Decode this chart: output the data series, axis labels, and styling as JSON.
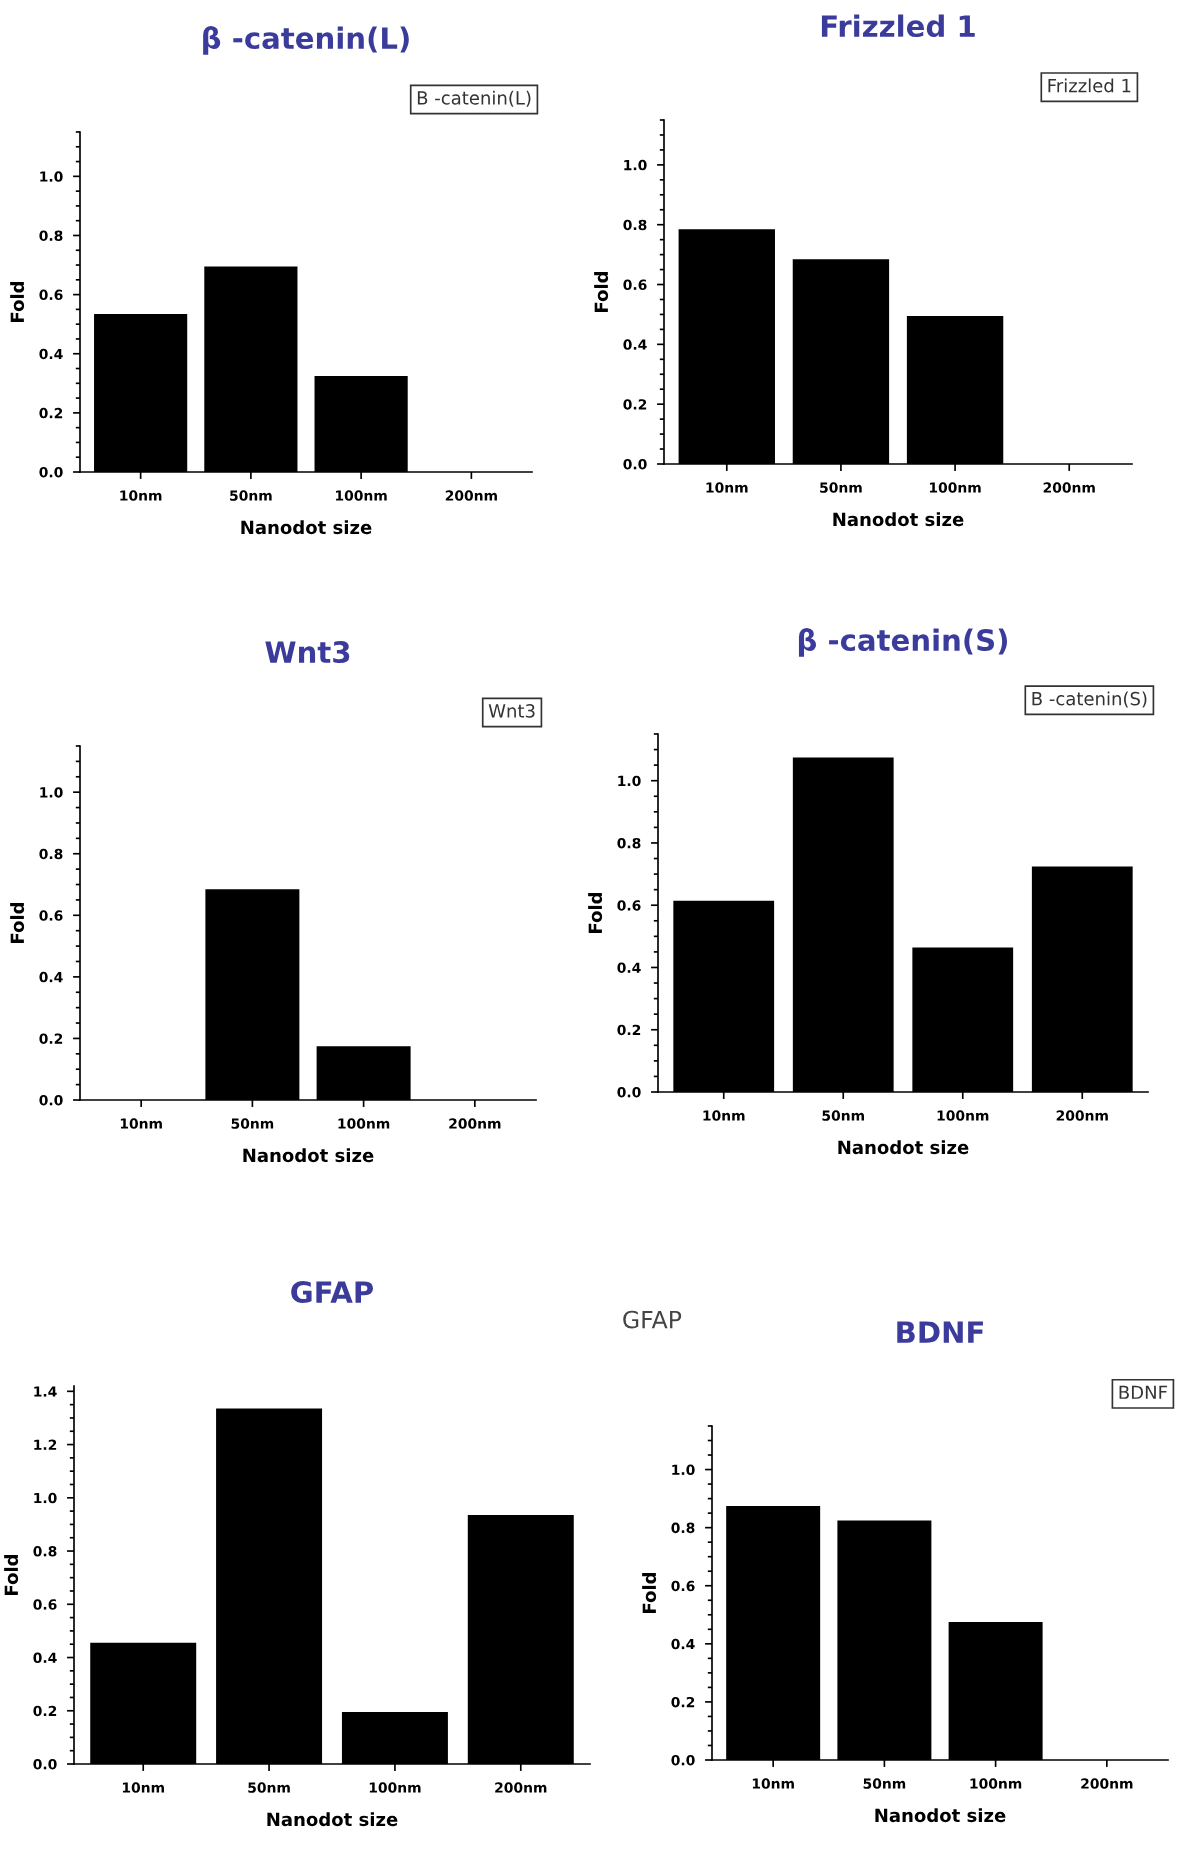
{
  "chart_data": [
    {
      "type": "bar",
      "title": "β -catenin(L)",
      "xlabel": "Nanodot size",
      "ylabel": "Fold",
      "categories": [
        "10nm",
        "50nm",
        "100nm",
        "200nm"
      ],
      "values": [
        0.53,
        0.69,
        0.32,
        null
      ],
      "color": "#000000",
      "ylim": [
        0,
        1.15
      ],
      "yticks": [
        {
          "value": 0,
          "label": "0.0"
        },
        {
          "value": 0.2,
          "label": "0.2"
        },
        {
          "value": 0.4,
          "label": "0.4"
        },
        {
          "value": 0.6,
          "label": "0.6"
        },
        {
          "value": 0.8,
          "label": "0.8"
        },
        {
          "value": 1.0,
          "label": "1.0"
        }
      ],
      "annotations": [
        "B -catenin(L)"
      ]
    },
    {
      "type": "bar",
      "title": "Frizzled 1",
      "xlabel": "Nanodot size",
      "ylabel": "Fold",
      "categories": [
        "10nm",
        "50nm",
        "100nm",
        "200nm"
      ],
      "values": [
        0.78,
        0.68,
        0.49,
        null
      ],
      "color": "#000000",
      "ylim": [
        0,
        1.15
      ],
      "yticks": [
        {
          "value": 0,
          "label": "0.0"
        },
        {
          "value": 0.2,
          "label": "0.2"
        },
        {
          "value": 0.4,
          "label": "0.4"
        },
        {
          "value": 0.6,
          "label": "0.6"
        },
        {
          "value": 0.8,
          "label": "0.8"
        },
        {
          "value": 1.0,
          "label": "1.0"
        }
      ],
      "annotations": [
        "Frizzled 1"
      ]
    },
    {
      "type": "bar",
      "title": "Wnt3",
      "xlabel": "Nanodot size",
      "ylabel": "Fold",
      "categories": [
        "10nm",
        "50nm",
        "100nm",
        "200nm"
      ],
      "values": [
        null,
        0.68,
        0.17,
        null
      ],
      "color": "#000000",
      "ylim": [
        0,
        1.15
      ],
      "yticks": [
        {
          "value": 0,
          "label": "0.0"
        },
        {
          "value": 0.2,
          "label": "0.2"
        },
        {
          "value": 0.4,
          "label": "0.4"
        },
        {
          "value": 0.6,
          "label": "0.6"
        },
        {
          "value": 0.8,
          "label": "0.8"
        },
        {
          "value": 1.0,
          "label": "1.0"
        }
      ],
      "annotations": [
        "Wnt3"
      ]
    },
    {
      "type": "bar",
      "title": "β -catenin(S)",
      "xlabel": "Nanodot size",
      "ylabel": "Fold",
      "categories": [
        "10nm",
        "50nm",
        "100nm",
        "200nm"
      ],
      "values": [
        0.61,
        1.07,
        0.46,
        0.72
      ],
      "color": "#000000",
      "ylim": [
        0,
        1.15
      ],
      "yticks": [
        {
          "value": 0,
          "label": "0.0"
        },
        {
          "value": 0.2,
          "label": "0.2"
        },
        {
          "value": 0.4,
          "label": "0.4"
        },
        {
          "value": 0.6,
          "label": "0.6"
        },
        {
          "value": 0.8,
          "label": "0.8"
        },
        {
          "value": 1.0,
          "label": "1.0"
        }
      ],
      "annotations": [
        "B -catenin(S)"
      ]
    },
    {
      "type": "bar",
      "title": "GFAP",
      "xlabel": "Nanodot size",
      "ylabel": "Fold",
      "categories": [
        "10nm",
        "50nm",
        "100nm",
        "200nm"
      ],
      "values": [
        0.45,
        1.33,
        0.19,
        0.93
      ],
      "color": "#000000",
      "ylim": [
        0,
        1.42
      ],
      "yticks": [
        {
          "value": 0,
          "label": "0.0"
        },
        {
          "value": 0.2,
          "label": "0.2"
        },
        {
          "value": 0.4,
          "label": "0.4"
        },
        {
          "value": 0.6,
          "label": "0.6"
        },
        {
          "value": 0.8,
          "label": "0.8"
        },
        {
          "value": 1.0,
          "label": "1.0"
        },
        {
          "value": 1.2,
          "label": "1.2"
        },
        {
          "value": 1.4,
          "label": "1.4"
        }
      ],
      "annotations": [
        "GFAP"
      ]
    },
    {
      "type": "bar",
      "title": "BDNF",
      "xlabel": "Nanodot size",
      "ylabel": "Fold",
      "categories": [
        "10nm",
        "50nm",
        "100nm",
        "200nm"
      ],
      "values": [
        0.87,
        0.82,
        0.47,
        null
      ],
      "color": "#000000",
      "ylim": [
        0,
        1.15
      ],
      "yticks": [
        {
          "value": 0,
          "label": "0.0"
        },
        {
          "value": 0.2,
          "label": "0.2"
        },
        {
          "value": 0.4,
          "label": "0.4"
        },
        {
          "value": 0.6,
          "label": "0.6"
        },
        {
          "value": 0.8,
          "label": "0.8"
        },
        {
          "value": 1.0,
          "label": "1.0"
        }
      ],
      "annotations": [
        "BDNF"
      ]
    }
  ]
}
